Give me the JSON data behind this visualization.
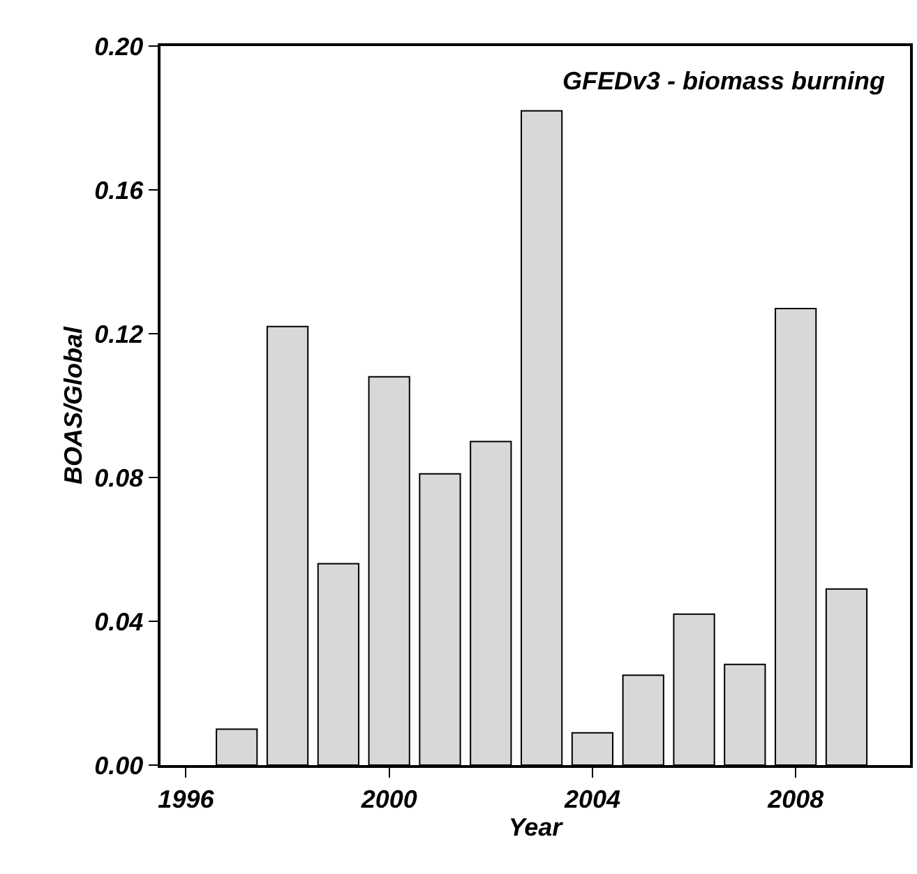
{
  "chart_data": {
    "type": "bar",
    "xlabel": "Year",
    "ylabel": "BOAS/Global",
    "x": [
      1997,
      1998,
      1999,
      2000,
      2001,
      2002,
      2003,
      2004,
      2005,
      2006,
      2007,
      2008,
      2009
    ],
    "values": [
      0.01,
      0.122,
      0.056,
      0.108,
      0.081,
      0.09,
      0.182,
      0.009,
      0.025,
      0.042,
      0.028,
      0.127,
      0.049
    ],
    "color": "#d8d8d8",
    "xlim": [
      1995.5,
      2010.25
    ],
    "xticks": [
      1996,
      2000,
      2004,
      2008
    ],
    "ylim": [
      0,
      0.2
    ],
    "yticks": [
      {
        "value": 0,
        "label": "0.00"
      },
      {
        "value": 0.04,
        "label": "0.04"
      },
      {
        "value": 0.08,
        "label": "0.08"
      },
      {
        "value": 0.12,
        "label": "0.12"
      },
      {
        "value": 0.16,
        "label": "0.16"
      },
      {
        "value": 0.2,
        "label": "0.20"
      }
    ],
    "annotations": [
      "GFEDv3 - biomass burning"
    ],
    "grid": false,
    "legend": false
  }
}
